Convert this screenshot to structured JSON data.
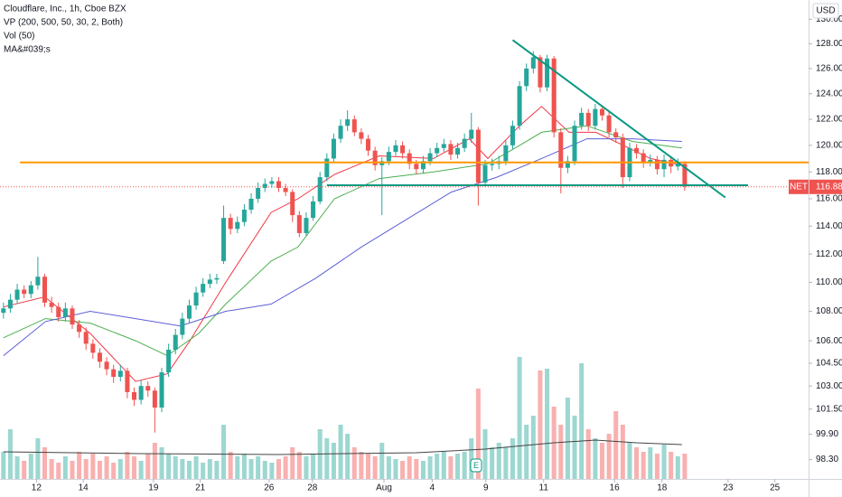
{
  "chart_data": {
    "type": "candlestick",
    "title": "Cloudflare, Inc., 1h, Cboe BZX",
    "indicators": [
      "VP (200, 500, 50, 30, 2, Both)",
      "Vol (50)",
      "MA&#039;s"
    ],
    "currency": "USD",
    "symbol_tag": "NET",
    "last_price": 116.88,
    "log": true,
    "up_color": "#26a69a",
    "down_color": "#ef5350",
    "xlim": [
      -0.5,
      117
    ],
    "xticks": [
      {
        "value": 4.8,
        "label": "12"
      },
      {
        "value": 11.6,
        "label": "14"
      },
      {
        "value": 21.8,
        "label": "19"
      },
      {
        "value": 28.6,
        "label": "21"
      },
      {
        "value": 38.6,
        "label": "26"
      },
      {
        "value": 44.9,
        "label": "28"
      },
      {
        "value": 55.3,
        "label": "Aug"
      },
      {
        "value": 62.3,
        "label": "4"
      },
      {
        "value": 70.1,
        "label": "9"
      },
      {
        "value": 78.5,
        "label": "11"
      },
      {
        "value": 88.8,
        "label": "16"
      },
      {
        "value": 95.7,
        "label": "18"
      },
      {
        "value": 105.3,
        "label": "23"
      },
      {
        "value": 112.1,
        "label": "25"
      }
    ],
    "ylim": [
      97.1,
      131.6
    ],
    "yticks": [
      {
        "value": 130,
        "label": "130.00"
      },
      {
        "value": 128,
        "label": "128.00"
      },
      {
        "value": 126,
        "label": "126.00"
      },
      {
        "value": 124,
        "label": "124.00"
      },
      {
        "value": 122,
        "label": "122.00"
      },
      {
        "value": 120,
        "label": "120.00"
      },
      {
        "value": 118,
        "label": "118.00"
      },
      {
        "value": 116,
        "label": "116.00"
      },
      {
        "value": 114,
        "label": "114.00"
      },
      {
        "value": 112,
        "label": "112.00"
      },
      {
        "value": 110,
        "label": "110.00"
      },
      {
        "value": 108,
        "label": "108.00"
      },
      {
        "value": 106,
        "label": "106.00"
      },
      {
        "value": 104.5,
        "label": "104.50"
      },
      {
        "value": 103,
        "label": "103.00"
      },
      {
        "value": 101.5,
        "label": "101.50"
      },
      {
        "value": 99.9,
        "label": "99.90"
      },
      {
        "value": 98.3,
        "label": "98.30"
      }
    ],
    "open": [
      107.9,
      108.2,
      108.8,
      109.5,
      109.2,
      109.8,
      110.4,
      108.6,
      108.3,
      107.6,
      108.2,
      107.1,
      106.6,
      105.8,
      105.2,
      104.6,
      104.1,
      103.6,
      104.0,
      102.6,
      102.1,
      103.0,
      102.7,
      101.6,
      103.9,
      105.4,
      106.4,
      107.5,
      108.4,
      109.3,
      109.9,
      110.2,
      111.5,
      114.6,
      113.8,
      114.3,
      115.2,
      116.0,
      116.8,
      117.1,
      117.3,
      116.8,
      116.5,
      114.8,
      113.5,
      114.6,
      115.8,
      117.6,
      119.0,
      120.5,
      121.5,
      122.0,
      121.0,
      120.5,
      119.6,
      118.5,
      118.8,
      119.5,
      120.0,
      119.4,
      118.6,
      118.2,
      118.8,
      119.4,
      119.8,
      120.1,
      119.3,
      119.8,
      120.5,
      121.2,
      117.2,
      118.5,
      118.6,
      118.8,
      120.0,
      121.5,
      124.6,
      126.0,
      126.9,
      124.5,
      126.8,
      121.0,
      118.3,
      118.8,
      121.5,
      122.5,
      121.5,
      122.8,
      122.3,
      121.0,
      120.6,
      117.6,
      119.8,
      119.4,
      118.7,
      118.9,
      118.2,
      118.9,
      118.4,
      118.6
    ],
    "high": [
      108.6,
      109.2,
      109.9,
      109.8,
      110.1,
      111.8,
      110.6,
      109.0,
      108.6,
      108.6,
      108.4,
      107.4,
      106.9,
      106.1,
      105.5,
      104.9,
      104.4,
      104.4,
      104.2,
      102.9,
      103.4,
      103.3,
      102.9,
      104.2,
      105.8,
      106.8,
      107.9,
      108.8,
      109.7,
      110.3,
      110.6,
      110.6,
      115.5,
      114.9,
      114.7,
      115.6,
      116.4,
      117.2,
      117.5,
      117.6,
      117.6,
      117.1,
      116.7,
      115.1,
      115.0,
      116.2,
      118.0,
      119.4,
      120.9,
      122.0,
      122.7,
      122.3,
      121.3,
      120.8,
      119.9,
      119.1,
      119.9,
      120.4,
      120.3,
      119.7,
      118.9,
      119.2,
      119.8,
      120.2,
      120.5,
      120.4,
      120.2,
      120.9,
      122.5,
      121.4,
      118.9,
      119.0,
      119.2,
      120.4,
      121.9,
      125.0,
      126.4,
      127.4,
      127.1,
      127.1,
      127.0,
      121.3,
      119.2,
      121.9,
      122.9,
      122.8,
      123.2,
      123.1,
      122.6,
      121.3,
      120.9,
      120.2,
      120.1,
      119.7,
      119.3,
      119.2,
      119.3,
      119.2,
      119.0,
      118.8
    ],
    "low": [
      107.5,
      107.9,
      108.5,
      108.9,
      108.9,
      109.5,
      108.3,
      107.9,
      107.3,
      107.3,
      106.8,
      106.2,
      105.4,
      104.8,
      104.2,
      103.7,
      103.2,
      103.3,
      102.2,
      101.7,
      101.8,
      102.3,
      100.0,
      101.3,
      103.6,
      105.1,
      106.1,
      107.2,
      108.1,
      109.0,
      109.6,
      109.9,
      111.3,
      113.4,
      113.5,
      114.0,
      114.9,
      115.7,
      116.5,
      116.8,
      116.5,
      116.2,
      114.3,
      113.2,
      113.3,
      114.4,
      115.6,
      117.3,
      118.7,
      120.2,
      121.1,
      120.7,
      120.1,
      119.2,
      118.1,
      114.8,
      118.5,
      119.2,
      119.0,
      118.2,
      117.8,
      117.9,
      118.5,
      119.1,
      119.5,
      118.9,
      119.0,
      119.5,
      120.2,
      115.5,
      116.9,
      118.1,
      118.2,
      118.5,
      119.7,
      121.2,
      124.2,
      125.6,
      124.1,
      124.2,
      120.6,
      116.4,
      117.9,
      118.5,
      121.2,
      121.1,
      121.2,
      121.9,
      120.6,
      120.2,
      116.8,
      117.3,
      119.0,
      118.3,
      118.4,
      117.8,
      117.6,
      117.9,
      118.1,
      116.6
    ],
    "close": [
      108.2,
      108.8,
      109.5,
      109.2,
      109.8,
      110.4,
      108.6,
      108.3,
      107.6,
      108.2,
      107.1,
      106.6,
      105.8,
      105.2,
      104.6,
      104.1,
      103.6,
      104.0,
      102.6,
      102.1,
      103.0,
      102.7,
      101.6,
      103.9,
      105.4,
      106.4,
      107.5,
      108.4,
      109.3,
      109.9,
      110.2,
      110.3,
      114.6,
      113.8,
      114.3,
      115.2,
      116.0,
      116.8,
      117.1,
      117.3,
      116.8,
      116.5,
      114.8,
      113.5,
      114.6,
      115.8,
      117.6,
      119.0,
      120.5,
      121.5,
      122.0,
      121.0,
      120.5,
      119.6,
      118.5,
      118.8,
      119.5,
      120.0,
      119.4,
      118.6,
      118.2,
      118.8,
      119.4,
      119.8,
      120.1,
      119.3,
      119.8,
      120.5,
      121.2,
      117.2,
      118.5,
      118.6,
      118.8,
      120.0,
      121.5,
      124.6,
      126.0,
      126.9,
      124.5,
      126.8,
      121.0,
      118.3,
      118.8,
      121.5,
      122.5,
      121.5,
      122.8,
      122.3,
      121.0,
      120.6,
      117.6,
      119.8,
      119.4,
      118.7,
      118.9,
      118.2,
      118.9,
      118.4,
      118.6,
      116.9
    ],
    "volume": [
      30,
      55,
      25,
      20,
      28,
      45,
      35,
      22,
      18,
      25,
      20,
      30,
      22,
      28,
      20,
      25,
      18,
      22,
      30,
      25,
      20,
      28,
      40,
      35,
      28,
      25,
      22,
      20,
      25,
      18,
      22,
      20,
      60,
      30,
      25,
      28,
      22,
      25,
      20,
      18,
      22,
      25,
      35,
      30,
      25,
      28,
      55,
      45,
      40,
      60,
      50,
      35,
      30,
      28,
      25,
      40,
      25,
      22,
      20,
      25,
      22,
      20,
      25,
      28,
      30,
      25,
      28,
      30,
      45,
      100,
      55,
      35,
      40,
      35,
      45,
      135,
      60,
      70,
      120,
      122,
      80,
      60,
      90,
      70,
      128,
      55,
      45,
      40,
      50,
      75,
      60,
      40,
      35,
      30,
      35,
      28,
      38,
      30,
      25,
      28
    ],
    "moving_averages": [
      {
        "color": "#f23645",
        "x": [
          0,
          6,
          12.6,
          19.2,
          23.8,
          27.1,
          32.3,
          38.9,
          42.8,
          48.1,
          54.6,
          62.5,
          67.7,
          70.4,
          75,
          78.2,
          82.2,
          86.1,
          90.1,
          94,
          98.6
        ],
        "values": [
          108.3,
          109,
          106.5,
          103.3,
          103.8,
          106,
          110,
          115,
          116,
          117.8,
          119.2,
          119,
          120.5,
          119,
          121.5,
          123,
          121,
          121,
          120,
          119,
          118.5
        ]
      },
      {
        "color": "#4caf50",
        "x": [
          0,
          6.1,
          12.6,
          19.2,
          23.8,
          28.4,
          32.3,
          38.9,
          42.8,
          48.1,
          54.6,
          62.5,
          70.4,
          75,
          78.2,
          84.8,
          91.4,
          98.6
        ],
        "values": [
          106.2,
          107.5,
          107.2,
          106,
          105,
          106.5,
          108.5,
          111.5,
          112.5,
          116,
          117.5,
          118,
          118.6,
          120,
          121,
          121.5,
          120.3,
          119.8
        ]
      },
      {
        "color": "#5b5fd6",
        "x": [
          0,
          6.1,
          12.6,
          19.2,
          25.7,
          32.3,
          38.9,
          45.4,
          52,
          58.6,
          65.1,
          71.7,
          78.2,
          84.8,
          91.4,
          98.6
        ],
        "values": [
          105,
          107.3,
          108,
          107.5,
          107,
          108,
          108.5,
          110.3,
          112.5,
          114.5,
          116.5,
          117.6,
          119,
          120.5,
          120.5,
          120.3
        ]
      }
    ],
    "volume_ma": {
      "color": "#444444",
      "x": [
        0,
        20,
        40,
        60,
        70,
        80,
        86,
        92,
        98.6
      ],
      "values": [
        30,
        28,
        27,
        29,
        33,
        40,
        43,
        40,
        38
      ]
    },
    "drawings": [
      {
        "color": "#ff9800",
        "x": [
          2.4,
          117
        ],
        "values": [
          118.7,
          118.7
        ]
      },
      {
        "color": "#089981",
        "x": [
          47,
          108.2
        ],
        "values": [
          117.0,
          117.0
        ]
      },
      {
        "color": "#089981",
        "x": [
          74,
          104.9
        ],
        "values": [
          128.3,
          116.1
        ]
      }
    ]
  }
}
